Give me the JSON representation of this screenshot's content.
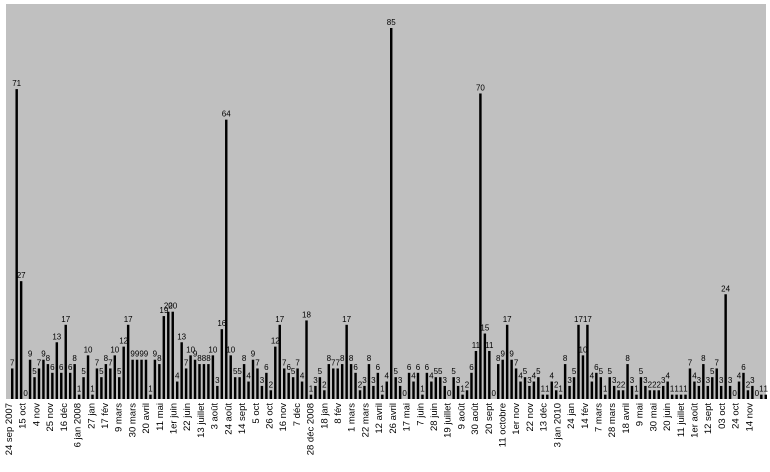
{
  "chart_data": {
    "type": "bar",
    "title": "",
    "xlabel": "",
    "ylabel": "",
    "ylim": [
      0,
      85
    ],
    "grid": false,
    "legend": "none",
    "colors": {
      "plot_bg": "#c0c0c0",
      "bar": "#000000",
      "text": "#000000"
    },
    "values": [
      7,
      71,
      27,
      0,
      9,
      5,
      7,
      9,
      8,
      6,
      13,
      6,
      17,
      6,
      8,
      1,
      5,
      10,
      1,
      7,
      5,
      8,
      7,
      10,
      5,
      12,
      17,
      9,
      9,
      9,
      9,
      1,
      9,
      8,
      19,
      20,
      20,
      4,
      13,
      7,
      10,
      9,
      8,
      8,
      8,
      10,
      3,
      16,
      64,
      10,
      5,
      5,
      8,
      4,
      9,
      7,
      3,
      6,
      2,
      12,
      17,
      7,
      6,
      5,
      7,
      4,
      18,
      1,
      3,
      5,
      2,
      8,
      7,
      7,
      8,
      17,
      8,
      6,
      2,
      3,
      8,
      3,
      6,
      1,
      4,
      85,
      5,
      3,
      0,
      6,
      4,
      6,
      1,
      6,
      4,
      5,
      5,
      3,
      0,
      5,
      3,
      1,
      2,
      6,
      11,
      70,
      15,
      11,
      0,
      8,
      9,
      17,
      9,
      7,
      4,
      5,
      3,
      4,
      5,
      1,
      1,
      4,
      2,
      1,
      8,
      3,
      5,
      17,
      10,
      17,
      4,
      6,
      5,
      1,
      5,
      3,
      2,
      2,
      8,
      3,
      1,
      5,
      3,
      2,
      2,
      2,
      3,
      4,
      1,
      1,
      1,
      1,
      7,
      4,
      3,
      8,
      3,
      5,
      7,
      3,
      24,
      3,
      0,
      4,
      6,
      2,
      3,
      0,
      1,
      1
    ],
    "x_tick_labels": [
      "24 sep 2007",
      "15 oct",
      "4 nov",
      "25 nov",
      "16 déc",
      "6 jan 2008",
      "27 jan",
      "17 fév",
      "9 mars",
      "30 mars",
      "20 avril",
      "11 mai",
      "1er juin",
      "22 juin",
      "13 juillet",
      "3 août",
      "24 août",
      "14 sept",
      "5 oct",
      "26 oct",
      "16 nov",
      "7 déc",
      "28 déc 2008",
      "18 jan",
      "8 fév",
      "1 mars",
      "22 mars",
      "12 avril",
      "26 avril",
      "17 mai",
      "7 juin",
      "28 juin",
      "19 juillet",
      "9 août",
      "30 août",
      "20 sept",
      "11 octobre",
      "1er nov",
      "22 nov",
      "13 déc",
      "3 jan 2010",
      "24 jan",
      "14 fév",
      "7 mars",
      "28 mars",
      "18 avril",
      "9 mai",
      "30 mai",
      "20 juin",
      "11 juillet",
      "1er août",
      "12 sept",
      "03 oct",
      "24 oct",
      "14 nov"
    ]
  }
}
